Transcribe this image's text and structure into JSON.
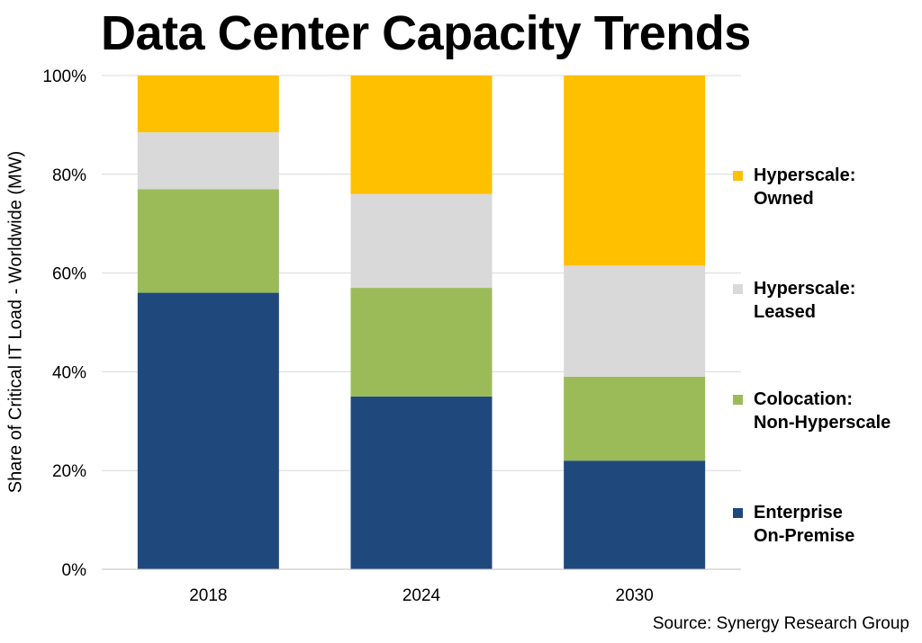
{
  "chart_data": {
    "type": "bar",
    "stacked": true,
    "normalized": true,
    "title": "Data Center Capacity Trends",
    "ylabel": "Share of Critical IT Load - Worldwide (MW)",
    "xlabel": "",
    "source": "Source: Synergy  Research Group",
    "categories": [
      "2018",
      "2024",
      "2030"
    ],
    "ylim": [
      0,
      100
    ],
    "y_ticks": [
      0,
      20,
      40,
      60,
      80,
      100
    ],
    "y_tick_labels": [
      "0%",
      "20%",
      "40%",
      "60%",
      "80%",
      "100%"
    ],
    "grid": true,
    "legend_position": "right",
    "series": [
      {
        "name": "Enterprise On-Premise",
        "name_lines": [
          "Enterprise",
          "On-Premise"
        ],
        "color": "#1F497D",
        "values": [
          56,
          35,
          22
        ]
      },
      {
        "name": "Colocation: Non-Hyperscale",
        "name_lines": [
          "Colocation:",
          "Non-Hyperscale"
        ],
        "color": "#9BBB59",
        "values": [
          21,
          22,
          17
        ]
      },
      {
        "name": "Hyperscale: Leased",
        "name_lines": [
          "Hyperscale:",
          "Leased"
        ],
        "color": "#D9D9D9",
        "values": [
          11.5,
          19,
          22.5
        ]
      },
      {
        "name": "Hyperscale: Owned",
        "name_lines": [
          "Hyperscale:",
          "Owned"
        ],
        "color": "#FFC000",
        "values": [
          11.5,
          24,
          38.5
        ]
      }
    ],
    "legend_order": [
      3,
      2,
      1,
      0
    ]
  }
}
